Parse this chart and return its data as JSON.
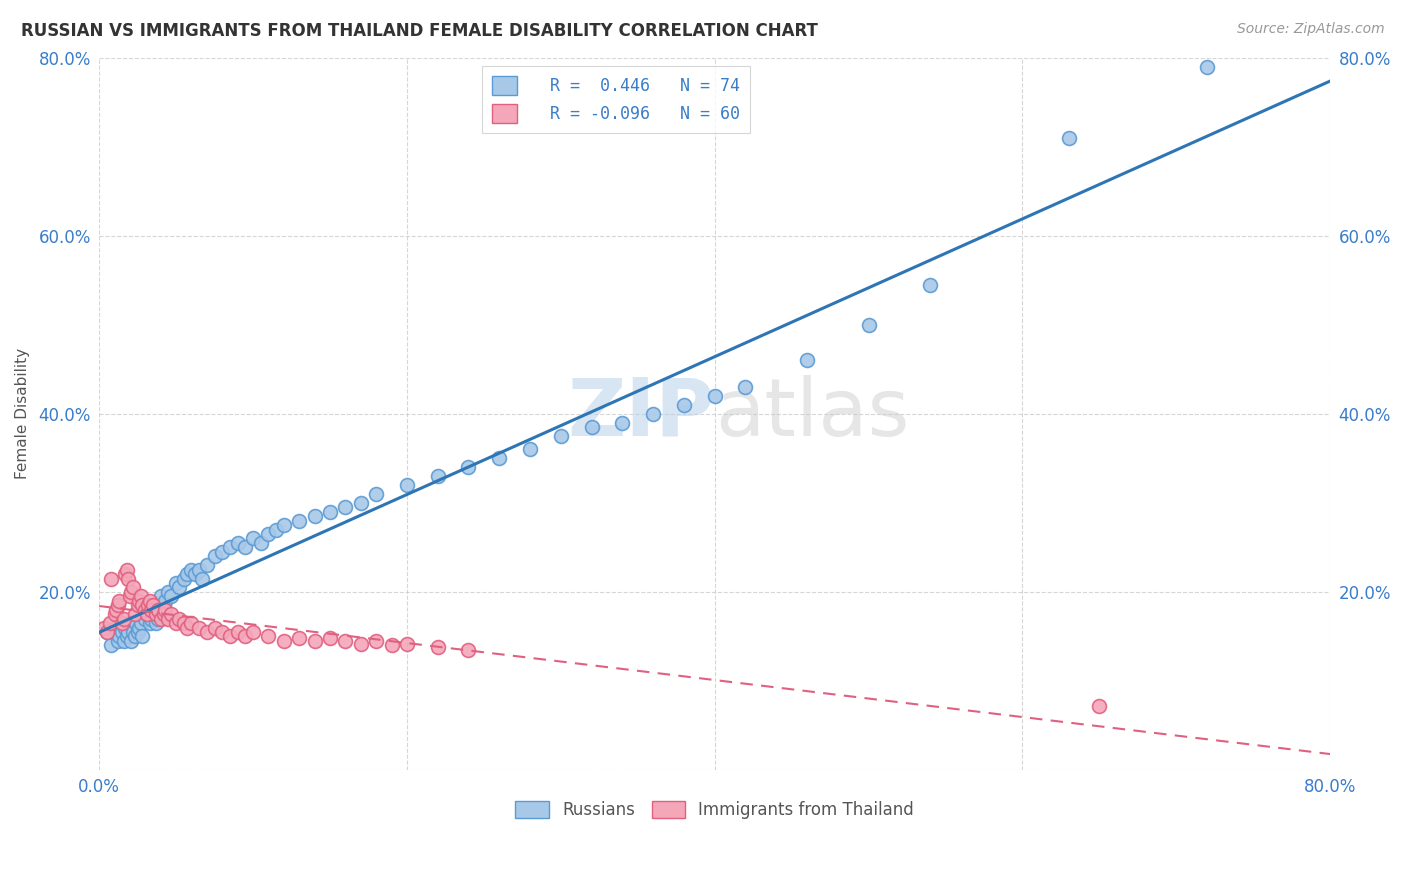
{
  "title": "RUSSIAN VS IMMIGRANTS FROM THAILAND FEMALE DISABILITY CORRELATION CHART",
  "source": "Source: ZipAtlas.com",
  "ylabel": "Female Disability",
  "xlim": [
    0.0,
    0.8
  ],
  "ylim": [
    0.0,
    0.8
  ],
  "xticks": [
    0.0,
    0.2,
    0.4,
    0.6,
    0.8
  ],
  "yticks": [
    0.0,
    0.2,
    0.4,
    0.6,
    0.8
  ],
  "legend_R1": "R =  0.446",
  "legend_N1": "N = 74",
  "legend_R2": "R = -0.096",
  "legend_N2": "N = 60",
  "blue_fill": "#A8C8E8",
  "blue_edge": "#5B9BD5",
  "pink_fill": "#F4A7B9",
  "pink_edge": "#E06080",
  "line_blue_color": "#2E75B6",
  "line_pink_color": "#E06080",
  "watermark": "ZIPatlas",
  "russians_x": [
    0.005,
    0.008,
    0.01,
    0.012,
    0.013,
    0.015,
    0.016,
    0.017,
    0.018,
    0.019,
    0.02,
    0.021,
    0.022,
    0.023,
    0.024,
    0.025,
    0.026,
    0.027,
    0.028,
    0.03,
    0.031,
    0.033,
    0.034,
    0.035,
    0.036,
    0.037,
    0.038,
    0.04,
    0.042,
    0.043,
    0.045,
    0.047,
    0.05,
    0.052,
    0.055,
    0.057,
    0.06,
    0.062,
    0.065,
    0.067,
    0.07,
    0.075,
    0.08,
    0.085,
    0.09,
    0.095,
    0.1,
    0.105,
    0.11,
    0.115,
    0.12,
    0.13,
    0.14,
    0.15,
    0.16,
    0.17,
    0.18,
    0.2,
    0.22,
    0.24,
    0.26,
    0.28,
    0.3,
    0.32,
    0.34,
    0.36,
    0.38,
    0.4,
    0.42,
    0.46,
    0.5,
    0.54,
    0.63,
    0.72
  ],
  "russians_y": [
    0.155,
    0.14,
    0.16,
    0.145,
    0.15,
    0.155,
    0.145,
    0.16,
    0.15,
    0.155,
    0.165,
    0.145,
    0.155,
    0.15,
    0.165,
    0.155,
    0.16,
    0.165,
    0.15,
    0.17,
    0.175,
    0.165,
    0.17,
    0.18,
    0.175,
    0.165,
    0.17,
    0.195,
    0.185,
    0.19,
    0.2,
    0.195,
    0.21,
    0.205,
    0.215,
    0.22,
    0.225,
    0.22,
    0.225,
    0.215,
    0.23,
    0.24,
    0.245,
    0.25,
    0.255,
    0.25,
    0.26,
    0.255,
    0.265,
    0.27,
    0.275,
    0.28,
    0.285,
    0.29,
    0.295,
    0.3,
    0.31,
    0.32,
    0.33,
    0.34,
    0.35,
    0.36,
    0.375,
    0.385,
    0.39,
    0.4,
    0.41,
    0.42,
    0.43,
    0.46,
    0.5,
    0.545,
    0.71,
    0.79
  ],
  "thailand_x": [
    0.003,
    0.005,
    0.007,
    0.008,
    0.01,
    0.011,
    0.012,
    0.013,
    0.015,
    0.016,
    0.017,
    0.018,
    0.019,
    0.02,
    0.021,
    0.022,
    0.023,
    0.025,
    0.026,
    0.027,
    0.028,
    0.03,
    0.031,
    0.032,
    0.033,
    0.034,
    0.035,
    0.037,
    0.038,
    0.04,
    0.042,
    0.043,
    0.045,
    0.047,
    0.05,
    0.052,
    0.055,
    0.057,
    0.06,
    0.065,
    0.07,
    0.075,
    0.08,
    0.085,
    0.09,
    0.095,
    0.1,
    0.11,
    0.12,
    0.13,
    0.14,
    0.15,
    0.16,
    0.17,
    0.18,
    0.19,
    0.2,
    0.22,
    0.24,
    0.65
  ],
  "thailand_y": [
    0.16,
    0.155,
    0.165,
    0.215,
    0.175,
    0.18,
    0.185,
    0.19,
    0.165,
    0.17,
    0.22,
    0.225,
    0.215,
    0.195,
    0.2,
    0.205,
    0.175,
    0.185,
    0.19,
    0.195,
    0.185,
    0.18,
    0.175,
    0.185,
    0.19,
    0.18,
    0.185,
    0.175,
    0.18,
    0.17,
    0.175,
    0.18,
    0.17,
    0.175,
    0.165,
    0.17,
    0.165,
    0.16,
    0.165,
    0.16,
    0.155,
    0.16,
    0.155,
    0.15,
    0.155,
    0.15,
    0.155,
    0.15,
    0.145,
    0.148,
    0.145,
    0.148,
    0.145,
    0.142,
    0.145,
    0.14,
    0.142,
    0.138,
    0.135,
    0.072
  ]
}
